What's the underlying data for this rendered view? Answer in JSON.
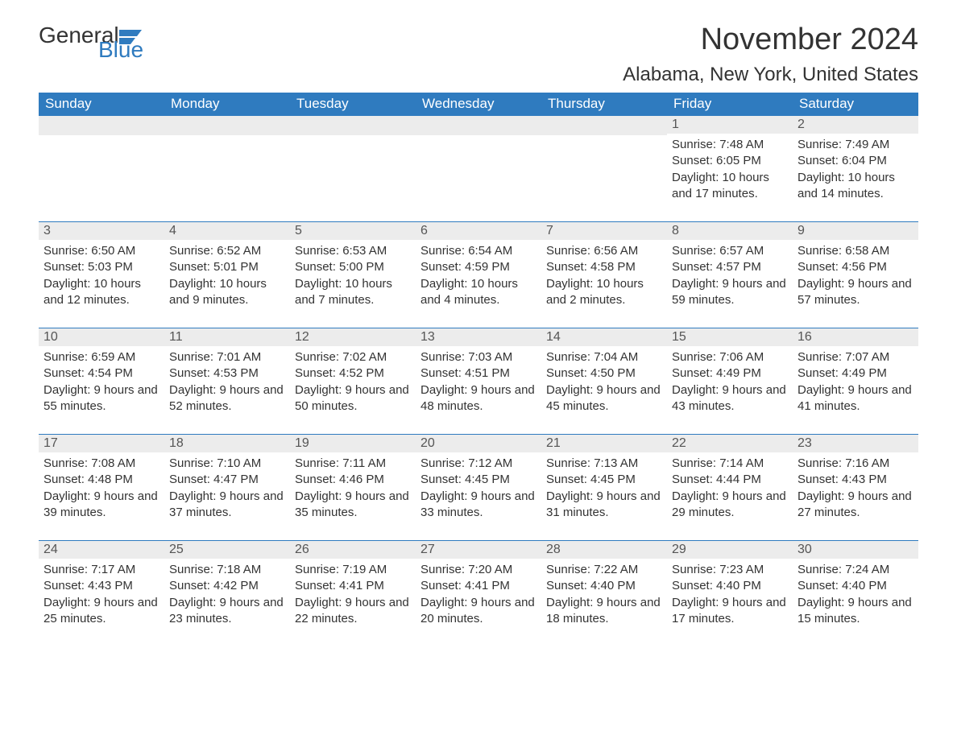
{
  "logo": {
    "text1": "General",
    "text2": "Blue",
    "icon_color": "#2F7BBF"
  },
  "title": "November 2024",
  "location": "Alabama, New York, United States",
  "colors": {
    "header_bg": "#2F7BBF",
    "header_text": "#ffffff",
    "daynum_bg": "#ececec",
    "border": "#2F7BBF",
    "text": "#333333"
  },
  "daynames": [
    "Sunday",
    "Monday",
    "Tuesday",
    "Wednesday",
    "Thursday",
    "Friday",
    "Saturday"
  ],
  "weeks": [
    [
      null,
      null,
      null,
      null,
      null,
      {
        "d": "1",
        "sr": "7:48 AM",
        "ss": "6:05 PM",
        "dl": "10 hours and 17 minutes."
      },
      {
        "d": "2",
        "sr": "7:49 AM",
        "ss": "6:04 PM",
        "dl": "10 hours and 14 minutes."
      }
    ],
    [
      {
        "d": "3",
        "sr": "6:50 AM",
        "ss": "5:03 PM",
        "dl": "10 hours and 12 minutes."
      },
      {
        "d": "4",
        "sr": "6:52 AM",
        "ss": "5:01 PM",
        "dl": "10 hours and 9 minutes."
      },
      {
        "d": "5",
        "sr": "6:53 AM",
        "ss": "5:00 PM",
        "dl": "10 hours and 7 minutes."
      },
      {
        "d": "6",
        "sr": "6:54 AM",
        "ss": "4:59 PM",
        "dl": "10 hours and 4 minutes."
      },
      {
        "d": "7",
        "sr": "6:56 AM",
        "ss": "4:58 PM",
        "dl": "10 hours and 2 minutes."
      },
      {
        "d": "8",
        "sr": "6:57 AM",
        "ss": "4:57 PM",
        "dl": "9 hours and 59 minutes."
      },
      {
        "d": "9",
        "sr": "6:58 AM",
        "ss": "4:56 PM",
        "dl": "9 hours and 57 minutes."
      }
    ],
    [
      {
        "d": "10",
        "sr": "6:59 AM",
        "ss": "4:54 PM",
        "dl": "9 hours and 55 minutes."
      },
      {
        "d": "11",
        "sr": "7:01 AM",
        "ss": "4:53 PM",
        "dl": "9 hours and 52 minutes."
      },
      {
        "d": "12",
        "sr": "7:02 AM",
        "ss": "4:52 PM",
        "dl": "9 hours and 50 minutes."
      },
      {
        "d": "13",
        "sr": "7:03 AM",
        "ss": "4:51 PM",
        "dl": "9 hours and 48 minutes."
      },
      {
        "d": "14",
        "sr": "7:04 AM",
        "ss": "4:50 PM",
        "dl": "9 hours and 45 minutes."
      },
      {
        "d": "15",
        "sr": "7:06 AM",
        "ss": "4:49 PM",
        "dl": "9 hours and 43 minutes."
      },
      {
        "d": "16",
        "sr": "7:07 AM",
        "ss": "4:49 PM",
        "dl": "9 hours and 41 minutes."
      }
    ],
    [
      {
        "d": "17",
        "sr": "7:08 AM",
        "ss": "4:48 PM",
        "dl": "9 hours and 39 minutes."
      },
      {
        "d": "18",
        "sr": "7:10 AM",
        "ss": "4:47 PM",
        "dl": "9 hours and 37 minutes."
      },
      {
        "d": "19",
        "sr": "7:11 AM",
        "ss": "4:46 PM",
        "dl": "9 hours and 35 minutes."
      },
      {
        "d": "20",
        "sr": "7:12 AM",
        "ss": "4:45 PM",
        "dl": "9 hours and 33 minutes."
      },
      {
        "d": "21",
        "sr": "7:13 AM",
        "ss": "4:45 PM",
        "dl": "9 hours and 31 minutes."
      },
      {
        "d": "22",
        "sr": "7:14 AM",
        "ss": "4:44 PM",
        "dl": "9 hours and 29 minutes."
      },
      {
        "d": "23",
        "sr": "7:16 AM",
        "ss": "4:43 PM",
        "dl": "9 hours and 27 minutes."
      }
    ],
    [
      {
        "d": "24",
        "sr": "7:17 AM",
        "ss": "4:43 PM",
        "dl": "9 hours and 25 minutes."
      },
      {
        "d": "25",
        "sr": "7:18 AM",
        "ss": "4:42 PM",
        "dl": "9 hours and 23 minutes."
      },
      {
        "d": "26",
        "sr": "7:19 AM",
        "ss": "4:41 PM",
        "dl": "9 hours and 22 minutes."
      },
      {
        "d": "27",
        "sr": "7:20 AM",
        "ss": "4:41 PM",
        "dl": "9 hours and 20 minutes."
      },
      {
        "d": "28",
        "sr": "7:22 AM",
        "ss": "4:40 PM",
        "dl": "9 hours and 18 minutes."
      },
      {
        "d": "29",
        "sr": "7:23 AM",
        "ss": "4:40 PM",
        "dl": "9 hours and 17 minutes."
      },
      {
        "d": "30",
        "sr": "7:24 AM",
        "ss": "4:40 PM",
        "dl": "9 hours and 15 minutes."
      }
    ]
  ],
  "labels": {
    "sunrise": "Sunrise: ",
    "sunset": "Sunset: ",
    "daylight": "Daylight: "
  }
}
